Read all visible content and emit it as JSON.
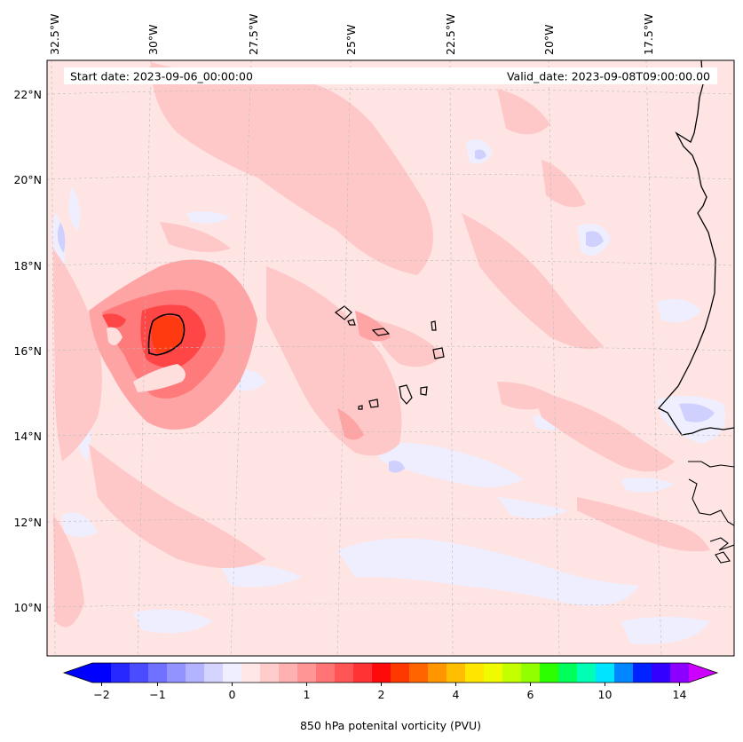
{
  "map": {
    "start_date": "Start date: 2023-09-06_00:00:00",
    "valid_date": "Valid_date: 2023-09-08T09:00:00.00",
    "lon_labels": [
      "32.5°W",
      "30°W",
      "27.5°W",
      "25°W",
      "22.5°W",
      "20°W",
      "17.5°W"
    ],
    "lat_labels": [
      "22°N",
      "20°N",
      "18°N",
      "16°N",
      "14°N",
      "12°N",
      "10°N"
    ],
    "colors": {
      "background_pink": "#ffe4e4",
      "light_pink": "#ffc4c4",
      "mid_pink": "#ff9a9a",
      "red": "#ff2a2a",
      "core": "#ff4a0a",
      "light_blue": "#eaeaff",
      "mid_blue": "#cfcfff",
      "coast": "#000000",
      "grid": "#bbbbbb"
    }
  },
  "colorbar": {
    "label": "850 hPa potenital vorticity (PVU)",
    "tick_labels": [
      "−2",
      "−1",
      "0",
      "1",
      "2",
      "4",
      "6",
      "10",
      "14"
    ],
    "tick_index": [
      1,
      4,
      8,
      12,
      16,
      20,
      24,
      28,
      32
    ],
    "colors": [
      "#0000ff",
      "#2727ff",
      "#4b4bff",
      "#7171ff",
      "#9393ff",
      "#b3b3ff",
      "#d4d4ff",
      "#efefff",
      "#ffe7e7",
      "#ffcccc",
      "#ffb0b0",
      "#ff9595",
      "#ff7575",
      "#ff5555",
      "#ff3333",
      "#ff0a0a",
      "#ff3800",
      "#ff6400",
      "#ff9600",
      "#ffbe00",
      "#ffe600",
      "#f0fa00",
      "#c4ff00",
      "#92ff00",
      "#2cff00",
      "#00ff5a",
      "#00ffb4",
      "#00e4ff",
      "#0086ff",
      "#0022ff",
      "#3200ff",
      "#8c00ff"
    ],
    "under_color": "#0000ff",
    "over_color": "#cc00ff"
  }
}
